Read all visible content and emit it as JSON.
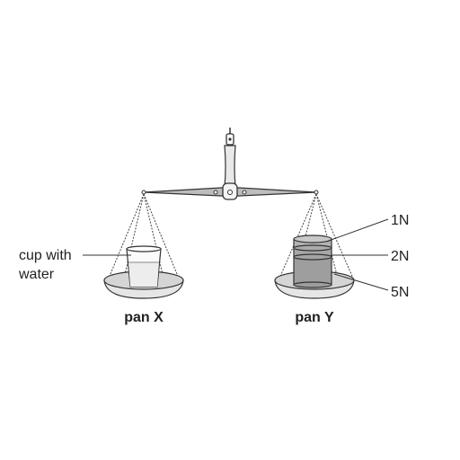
{
  "diagram": {
    "left_callout": {
      "line1": "cup with",
      "line2": "water"
    },
    "pan_labels": {
      "left": "pan X",
      "right": "pan Y"
    },
    "weight_labels": {
      "top": "1N",
      "middle": "2N",
      "bottom": "5N"
    }
  }
}
